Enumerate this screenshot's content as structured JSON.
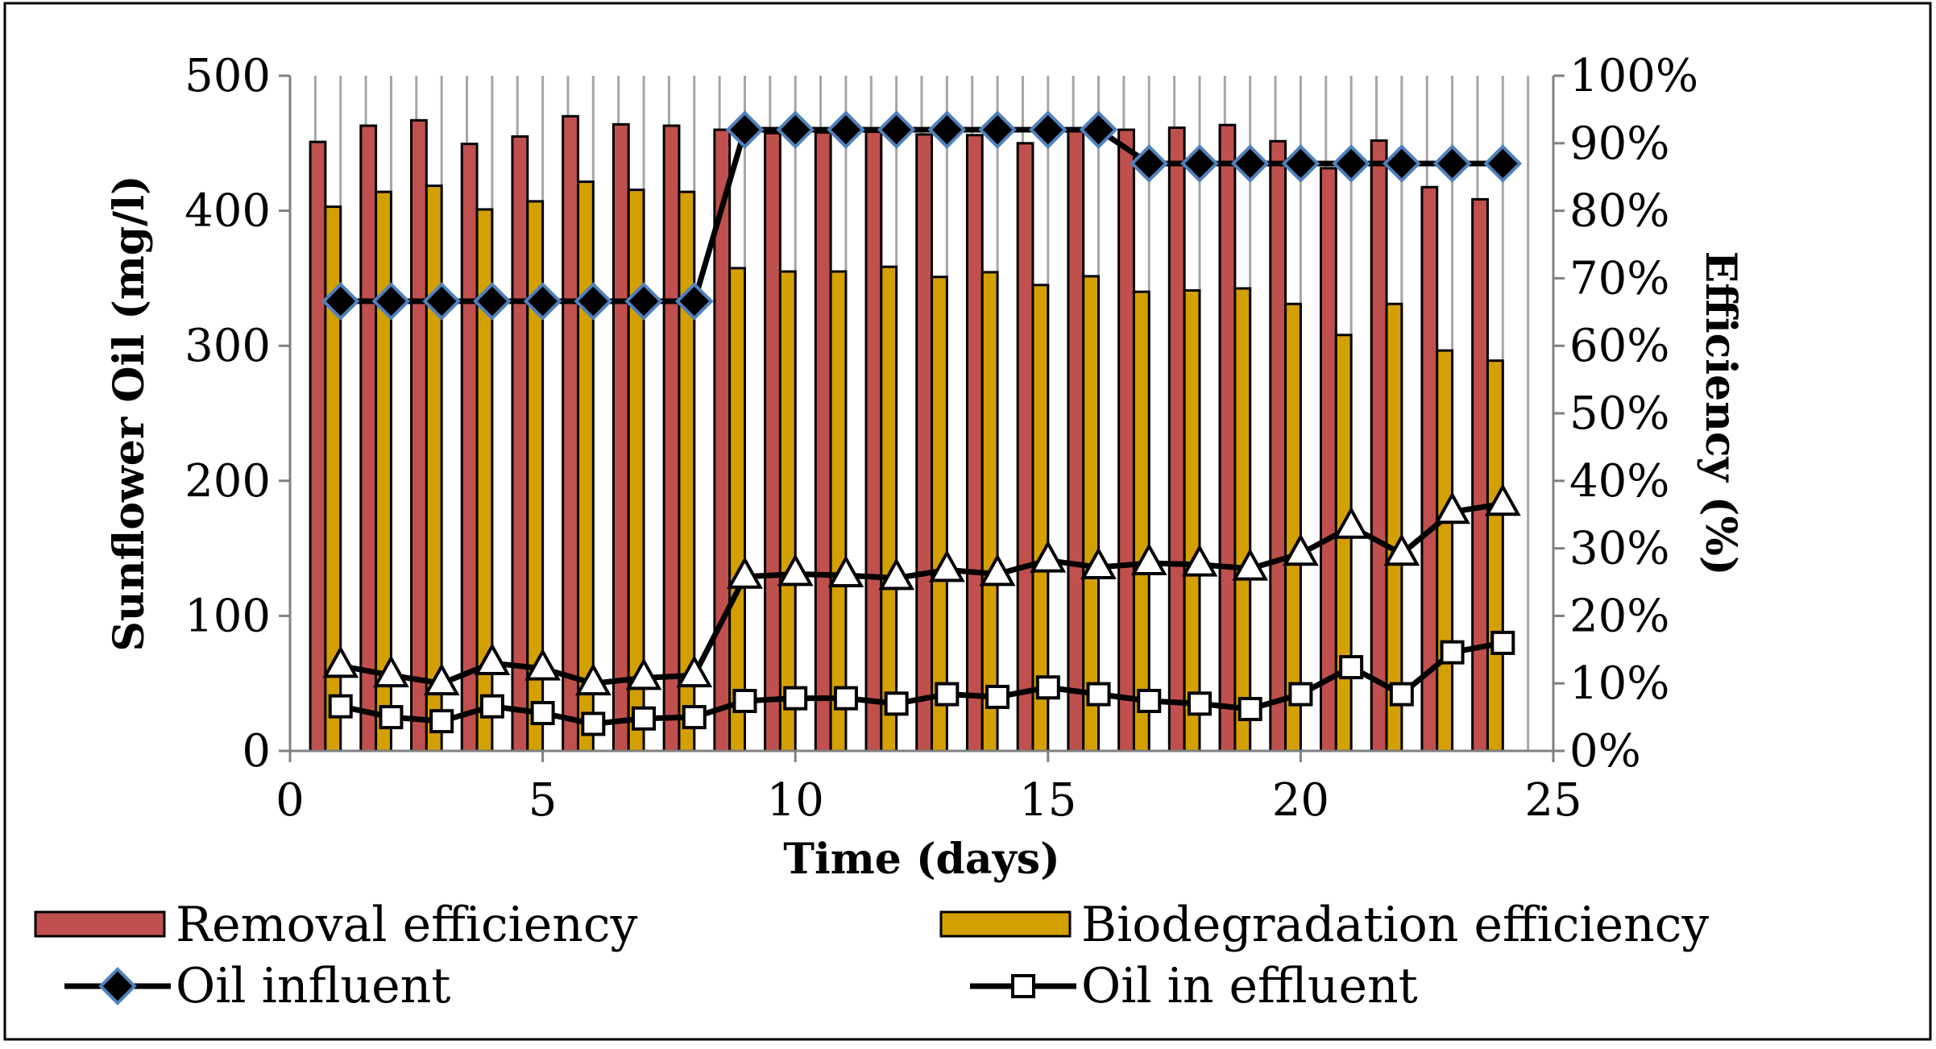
{
  "chart_data": {
    "type": "bar",
    "title": "",
    "x_values": [
      1,
      2,
      3,
      4,
      5,
      6,
      7,
      8,
      9,
      10,
      11,
      12,
      13,
      14,
      15,
      16,
      17,
      18,
      19,
      20,
      21,
      22,
      23,
      24
    ],
    "xlabel": "Time (days)",
    "ylabel_left": "Sunflower Oil (mg/l)",
    "ylabel_right": "Efficiency (%)",
    "xlim": [
      0,
      25
    ],
    "ylim_left": [
      0,
      500
    ],
    "ylim_right": [
      0,
      100
    ],
    "x_ticks": [
      "0",
      "5",
      "10",
      "15",
      "20",
      "25"
    ],
    "y_ticks_left": [
      "0",
      "100",
      "200",
      "300",
      "400",
      "500"
    ],
    "y_ticks_right": [
      "0%",
      "10%",
      "20%",
      "30%",
      "40%",
      "50%",
      "60%",
      "70%",
      "80%",
      "90%",
      "100%"
    ],
    "bar_series": [
      {
        "name": "Removal efficiency",
        "axis": "right",
        "color": "#c0504d",
        "values": [
          90.2,
          92.6,
          93.4,
          89.9,
          91.0,
          94.0,
          92.8,
          92.6,
          92.0,
          91.5,
          91.6,
          91.7,
          91.3,
          91.2,
          90.0,
          91.8,
          92.0,
          92.3,
          92.7,
          90.3,
          86.3,
          90.4,
          83.5,
          81.7
        ]
      },
      {
        "name": "Biodegradation efficiency",
        "axis": "right",
        "color": "#d4a000",
        "values": [
          80.6,
          82.8,
          83.7,
          80.2,
          81.4,
          84.3,
          83.1,
          82.8,
          71.5,
          71.0,
          71.0,
          71.7,
          70.2,
          70.9,
          69.0,
          70.3,
          68.0,
          68.2,
          68.5,
          66.2,
          61.6,
          66.2,
          59.3,
          57.8
        ]
      }
    ],
    "line_series": [
      {
        "name": "Oil influent",
        "axis": "left",
        "marker": "diamond",
        "values": [
          333,
          333,
          333,
          333,
          333,
          333,
          333,
          333,
          460,
          460,
          460,
          460,
          460,
          460,
          460,
          460,
          435,
          435,
          435,
          435,
          435,
          435,
          435,
          435
        ]
      },
      {
        "name": "Oil in effluent",
        "axis": "left",
        "marker": "square",
        "values": [
          33,
          25,
          22,
          33,
          28,
          20,
          24,
          25,
          37,
          39,
          39,
          35,
          42,
          40,
          47,
          42,
          37,
          35,
          31,
          42,
          62,
          42,
          73,
          80
        ]
      },
      {
        "name": "",
        "axis": "left",
        "marker": "triangle",
        "values": [
          63,
          56,
          50,
          65,
          61,
          50,
          54,
          56,
          129,
          131,
          130,
          128,
          134,
          131,
          141,
          136,
          139,
          138,
          135,
          146,
          166,
          146,
          177,
          183
        ]
      }
    ],
    "legend": {
      "position": "bottom",
      "entries": [
        "Removal efficiency",
        "Biodegradation efficiency",
        "Oil influent",
        "Oil in effluent"
      ]
    },
    "grid": "vertical"
  }
}
